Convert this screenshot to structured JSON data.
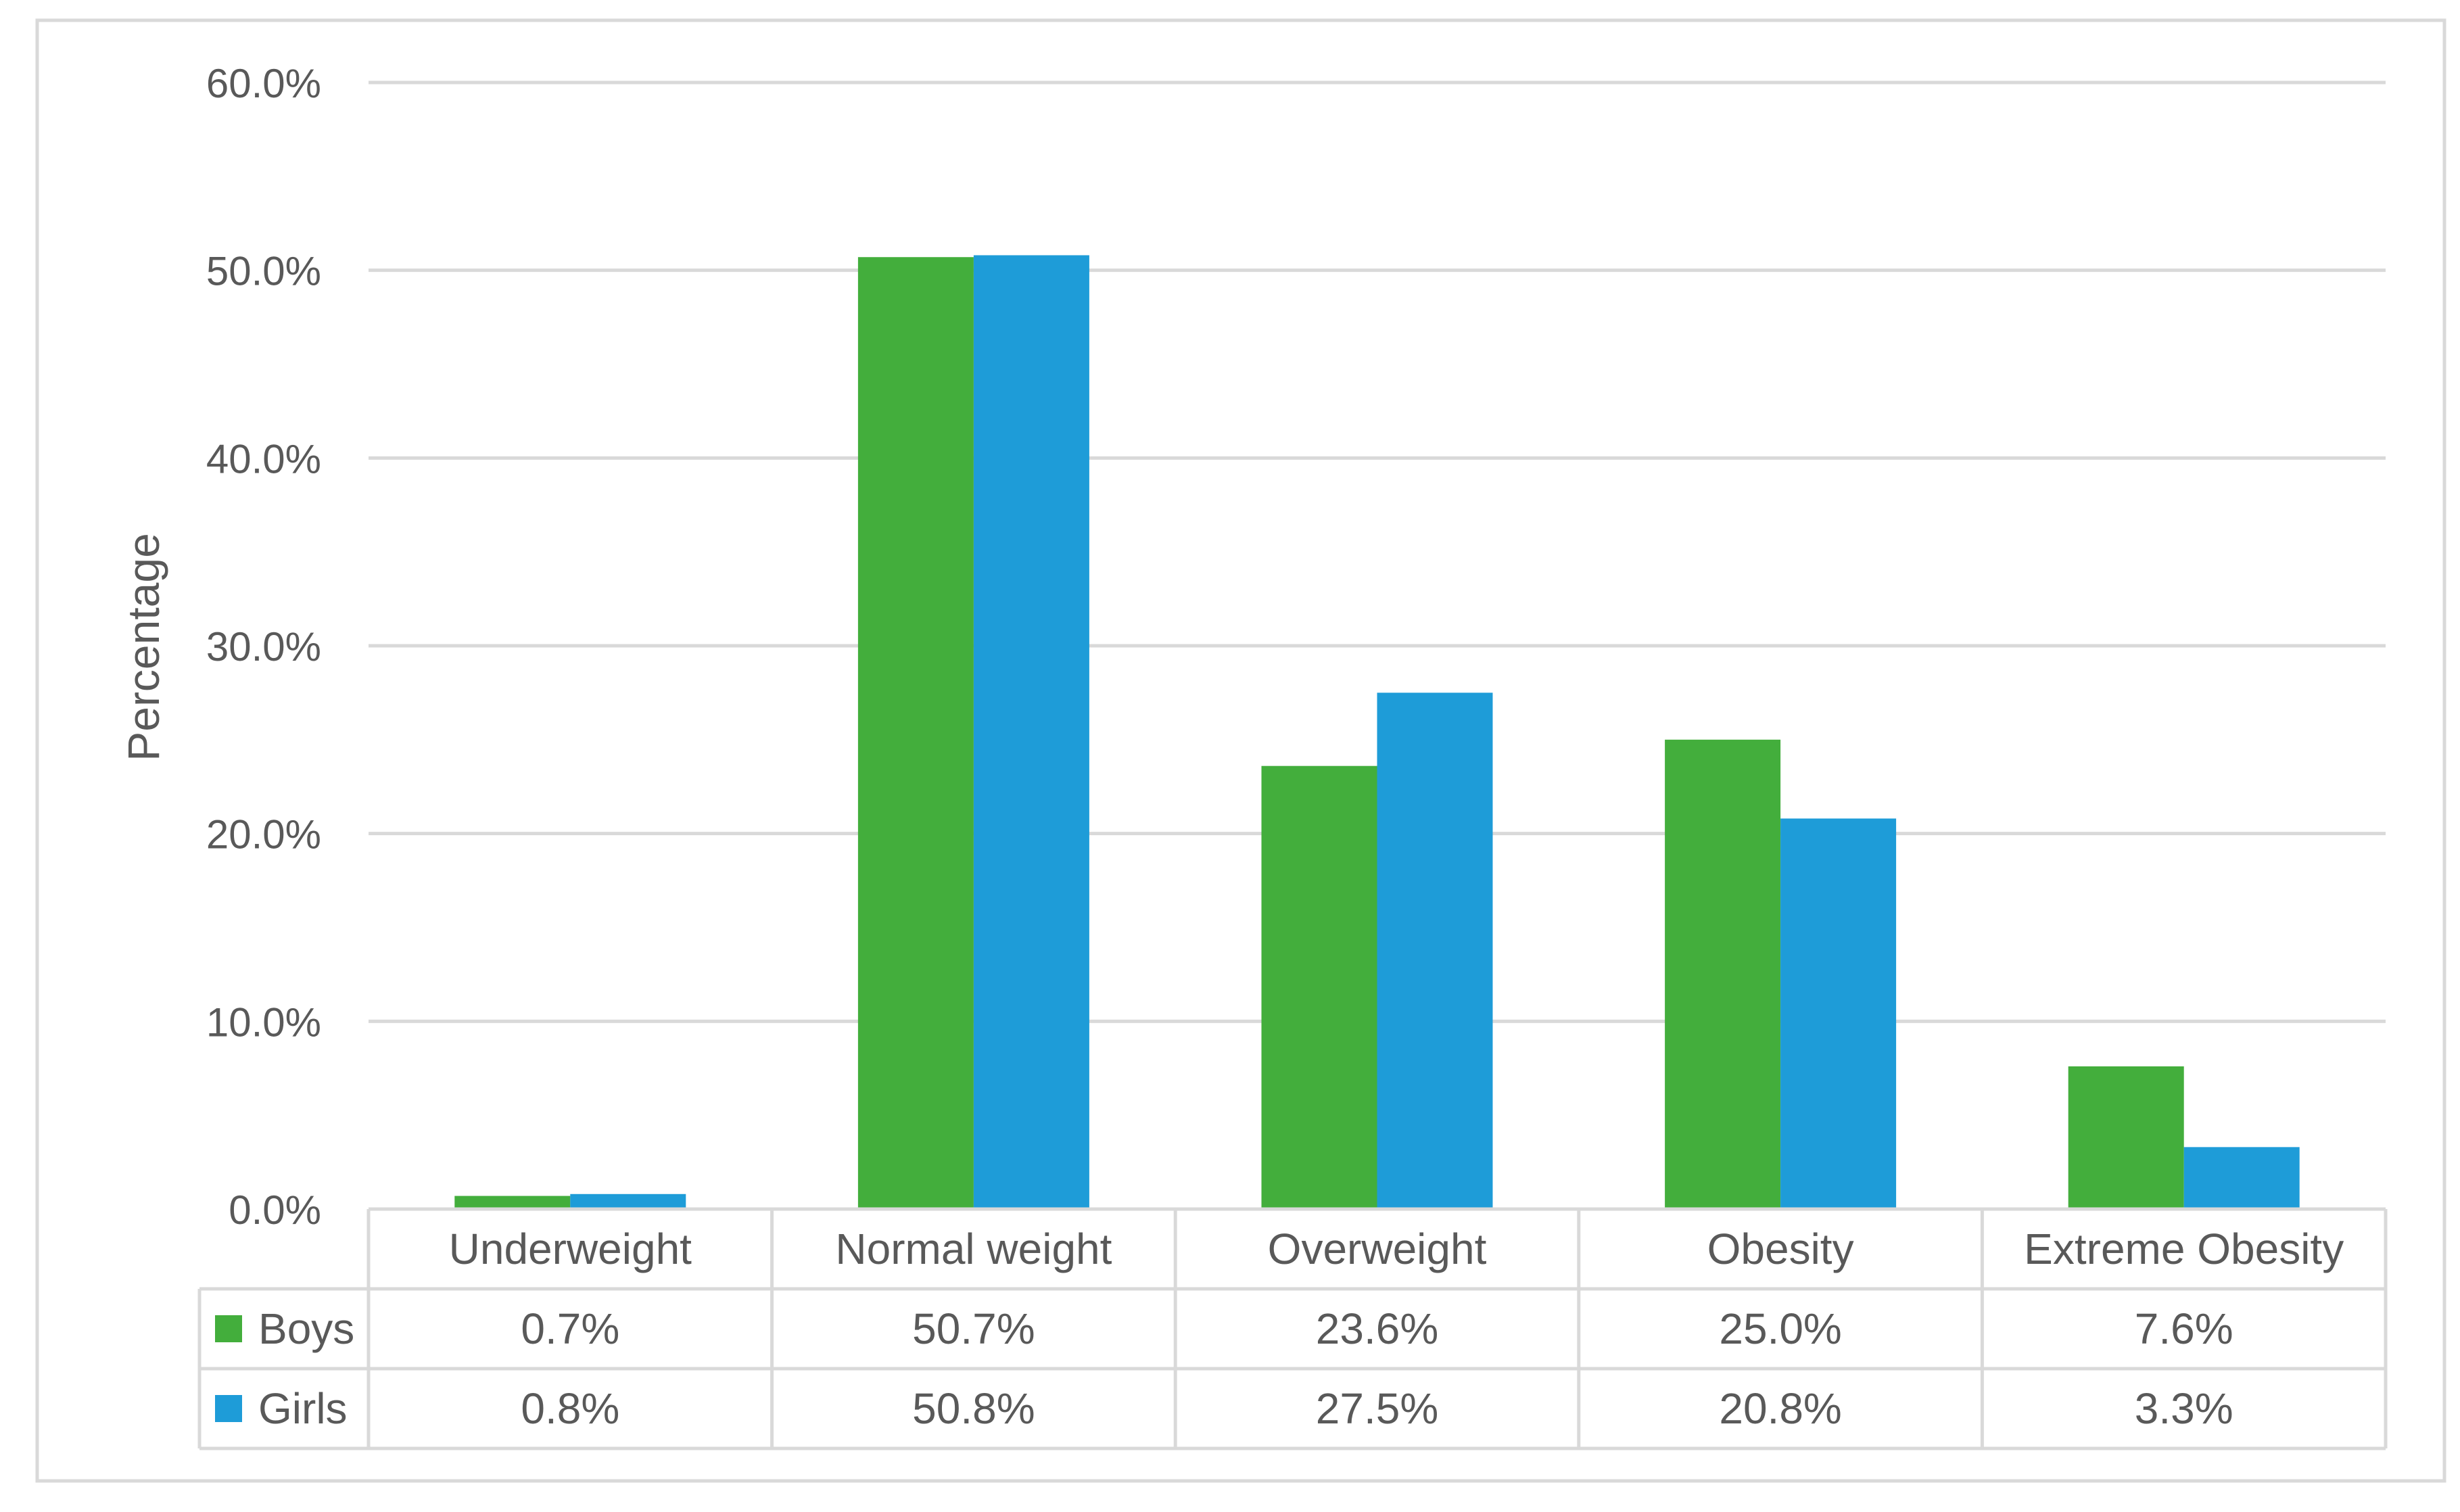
{
  "chart_data": {
    "type": "bar",
    "title": "",
    "xlabel": "",
    "ylabel": "Percentage",
    "ylim": [
      0,
      60
    ],
    "yticks": [
      "0.0%",
      "10.0%",
      "20.0%",
      "30.0%",
      "40.0%",
      "50.0%",
      "60.0%"
    ],
    "grid": true,
    "legend": "data-table",
    "categories": [
      "Underweight",
      "Normal weight",
      "Overweight",
      "Obesity",
      "Extreme Obesity"
    ],
    "series": [
      {
        "name": "Boys",
        "color": "#43AE3C",
        "values": [
          0.7,
          50.7,
          23.6,
          25.0,
          7.6
        ],
        "labels": [
          "0.7%",
          "50.7%",
          "23.6%",
          "25.0%",
          "7.6%"
        ]
      },
      {
        "name": "Girls",
        "color": "#1E9CD8",
        "values": [
          0.8,
          50.8,
          27.5,
          20.8,
          3.3
        ],
        "labels": [
          "0.8%",
          "50.8%",
          "27.5%",
          "20.8%",
          "3.3%"
        ]
      }
    ]
  }
}
